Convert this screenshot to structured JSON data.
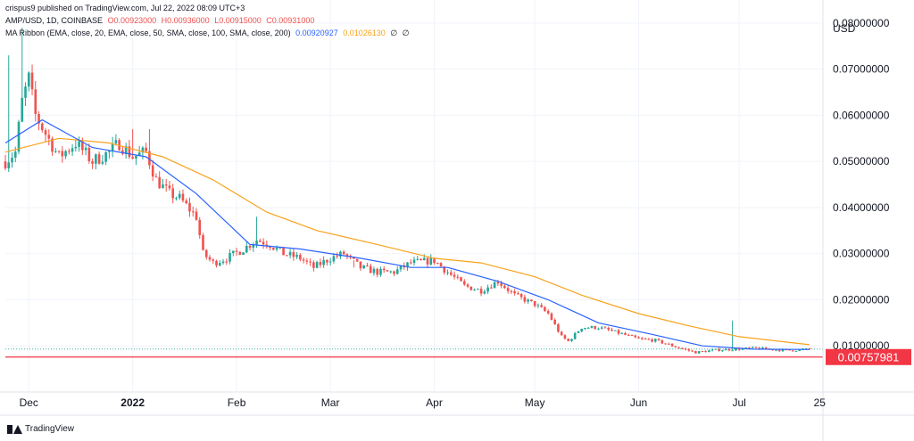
{
  "header": {
    "published_by": "crispus9 published on TradingView.com, Jul 22, 2022 08:09 UTC+3",
    "symbol": "AMP/USD, 1D, COINBASE",
    "open": "O0.00923000",
    "high": "H0.00936000",
    "low": "L0.00915000",
    "close": "C0.00931000",
    "indicator": "MA Ribbon (EMA, close, 20, EMA, close, 50, SMA, close, 100, SMA, close, 200)",
    "ma_value_1": "0.00920927",
    "ma_value_2": "0.01026130",
    "ma_value_3": "∅",
    "ma_value_4": "∅"
  },
  "brand": {
    "label": "TradingView"
  },
  "colors": {
    "up": "#26a69a",
    "down": "#ef5350",
    "ma20": "#2962ff",
    "ma50": "#f7a21b",
    "support": "#f23645",
    "grid": "#f0f3fa"
  },
  "chart_data": {
    "type": "candlestick",
    "currency": "USD",
    "ylim": [
      0.0,
      0.085
    ],
    "y_ticks": [
      0.08,
      0.07,
      0.06,
      0.05,
      0.04,
      0.03,
      0.02,
      0.01
    ],
    "y_tick_labels": [
      "0.08000000",
      "0.07000000",
      "0.06000000",
      "0.05000000",
      "0.04000000",
      "0.03000000",
      "0.02000000",
      "0.01000000"
    ],
    "x_start": "2021-11-24",
    "x_end": "2022-07-26",
    "x_ticks": [
      {
        "date": "2021-12-01",
        "label": "Dec",
        "bold": false
      },
      {
        "date": "2022-01-01",
        "label": "2022",
        "bold": true
      },
      {
        "date": "2022-02-01",
        "label": "Feb",
        "bold": false
      },
      {
        "date": "2022-03-01",
        "label": "Mar",
        "bold": false
      },
      {
        "date": "2022-04-01",
        "label": "Apr",
        "bold": false
      },
      {
        "date": "2022-05-01",
        "label": "May",
        "bold": false
      },
      {
        "date": "2022-06-01",
        "label": "Jun",
        "bold": false
      },
      {
        "date": "2022-07-01",
        "label": "Jul",
        "bold": false
      },
      {
        "date": "2022-07-25",
        "label": "25",
        "bold": false
      }
    ],
    "support_level": 0.00757981,
    "support_label": "0.00757981",
    "last_price": 0.00931,
    "close_points": [
      [
        "2021-11-24",
        0.05
      ],
      [
        "2021-11-27",
        0.052
      ],
      [
        "2021-11-29",
        0.063
      ],
      [
        "2021-12-01",
        0.068
      ],
      [
        "2021-12-03",
        0.06
      ],
      [
        "2021-12-06",
        0.056
      ],
      [
        "2021-12-10",
        0.051
      ],
      [
        "2021-12-15",
        0.054
      ],
      [
        "2021-12-20",
        0.05
      ],
      [
        "2021-12-25",
        0.052
      ],
      [
        "2021-12-28",
        0.054
      ],
      [
        "2022-01-01",
        0.051
      ],
      [
        "2022-01-05",
        0.052
      ],
      [
        "2022-01-08",
        0.046
      ],
      [
        "2022-01-12",
        0.043
      ],
      [
        "2022-01-15",
        0.042
      ],
      [
        "2022-01-20",
        0.038
      ],
      [
        "2022-01-22",
        0.03
      ],
      [
        "2022-01-25",
        0.028
      ],
      [
        "2022-01-29",
        0.029
      ],
      [
        "2022-02-03",
        0.031
      ],
      [
        "2022-02-07",
        0.033
      ],
      [
        "2022-02-11",
        0.032
      ],
      [
        "2022-02-15",
        0.03
      ],
      [
        "2022-02-20",
        0.029
      ],
      [
        "2022-02-24",
        0.027
      ],
      [
        "2022-03-01",
        0.029
      ],
      [
        "2022-03-05",
        0.03
      ],
      [
        "2022-03-10",
        0.027
      ],
      [
        "2022-03-15",
        0.026
      ],
      [
        "2022-03-20",
        0.026
      ],
      [
        "2022-03-25",
        0.028
      ],
      [
        "2022-04-01",
        0.0285
      ],
      [
        "2022-04-05",
        0.026
      ],
      [
        "2022-04-10",
        0.023
      ],
      [
        "2022-04-15",
        0.022
      ],
      [
        "2022-04-20",
        0.024
      ],
      [
        "2022-04-25",
        0.021
      ],
      [
        "2022-05-01",
        0.019
      ],
      [
        "2022-05-05",
        0.017
      ],
      [
        "2022-05-09",
        0.012
      ],
      [
        "2022-05-11",
        0.011
      ],
      [
        "2022-05-15",
        0.014
      ],
      [
        "2022-05-20",
        0.014
      ],
      [
        "2022-05-25",
        0.013
      ],
      [
        "2022-06-01",
        0.0115
      ],
      [
        "2022-06-06",
        0.0112
      ],
      [
        "2022-06-12",
        0.0098
      ],
      [
        "2022-06-18",
        0.0086
      ],
      [
        "2022-06-24",
        0.0091
      ],
      [
        "2022-06-30",
        0.0093
      ],
      [
        "2022-07-05",
        0.0095
      ],
      [
        "2022-07-10",
        0.0093
      ],
      [
        "2022-07-15",
        0.009
      ],
      [
        "2022-07-20",
        0.0092
      ],
      [
        "2022-07-22",
        0.00931
      ]
    ],
    "spikes": [
      [
        "2021-11-25",
        0.073
      ],
      [
        "2021-11-29",
        0.079
      ],
      [
        "2021-12-02",
        0.071
      ],
      [
        "2022-01-01",
        0.057
      ],
      [
        "2022-01-06",
        0.057
      ],
      [
        "2022-02-07",
        0.038
      ],
      [
        "2022-03-08",
        0.027
      ],
      [
        "2022-06-29",
        0.0155
      ]
    ],
    "ma20_points": [
      [
        "2021-11-24",
        0.054
      ],
      [
        "2021-12-05",
        0.059
      ],
      [
        "2021-12-20",
        0.053
      ],
      [
        "2022-01-05",
        0.051
      ],
      [
        "2022-01-20",
        0.043
      ],
      [
        "2022-02-05",
        0.032
      ],
      [
        "2022-02-20",
        0.031
      ],
      [
        "2022-03-10",
        0.029
      ],
      [
        "2022-03-25",
        0.027
      ],
      [
        "2022-04-05",
        0.027
      ],
      [
        "2022-04-20",
        0.024
      ],
      [
        "2022-05-05",
        0.02
      ],
      [
        "2022-05-20",
        0.015
      ],
      [
        "2022-06-05",
        0.0125
      ],
      [
        "2022-06-20",
        0.01
      ],
      [
        "2022-07-05",
        0.0093
      ],
      [
        "2022-07-22",
        0.00920927
      ]
    ],
    "ma50_points": [
      [
        "2021-11-24",
        0.052
      ],
      [
        "2021-12-10",
        0.055
      ],
      [
        "2021-12-25",
        0.054
      ],
      [
        "2022-01-10",
        0.051
      ],
      [
        "2022-01-25",
        0.046
      ],
      [
        "2022-02-10",
        0.039
      ],
      [
        "2022-02-25",
        0.035
      ],
      [
        "2022-03-15",
        0.032
      ],
      [
        "2022-04-01",
        0.029
      ],
      [
        "2022-04-15",
        0.028
      ],
      [
        "2022-05-01",
        0.025
      ],
      [
        "2022-05-15",
        0.021
      ],
      [
        "2022-06-01",
        0.017
      ],
      [
        "2022-06-15",
        0.0145
      ],
      [
        "2022-07-01",
        0.012
      ],
      [
        "2022-07-22",
        0.0102613
      ]
    ]
  }
}
